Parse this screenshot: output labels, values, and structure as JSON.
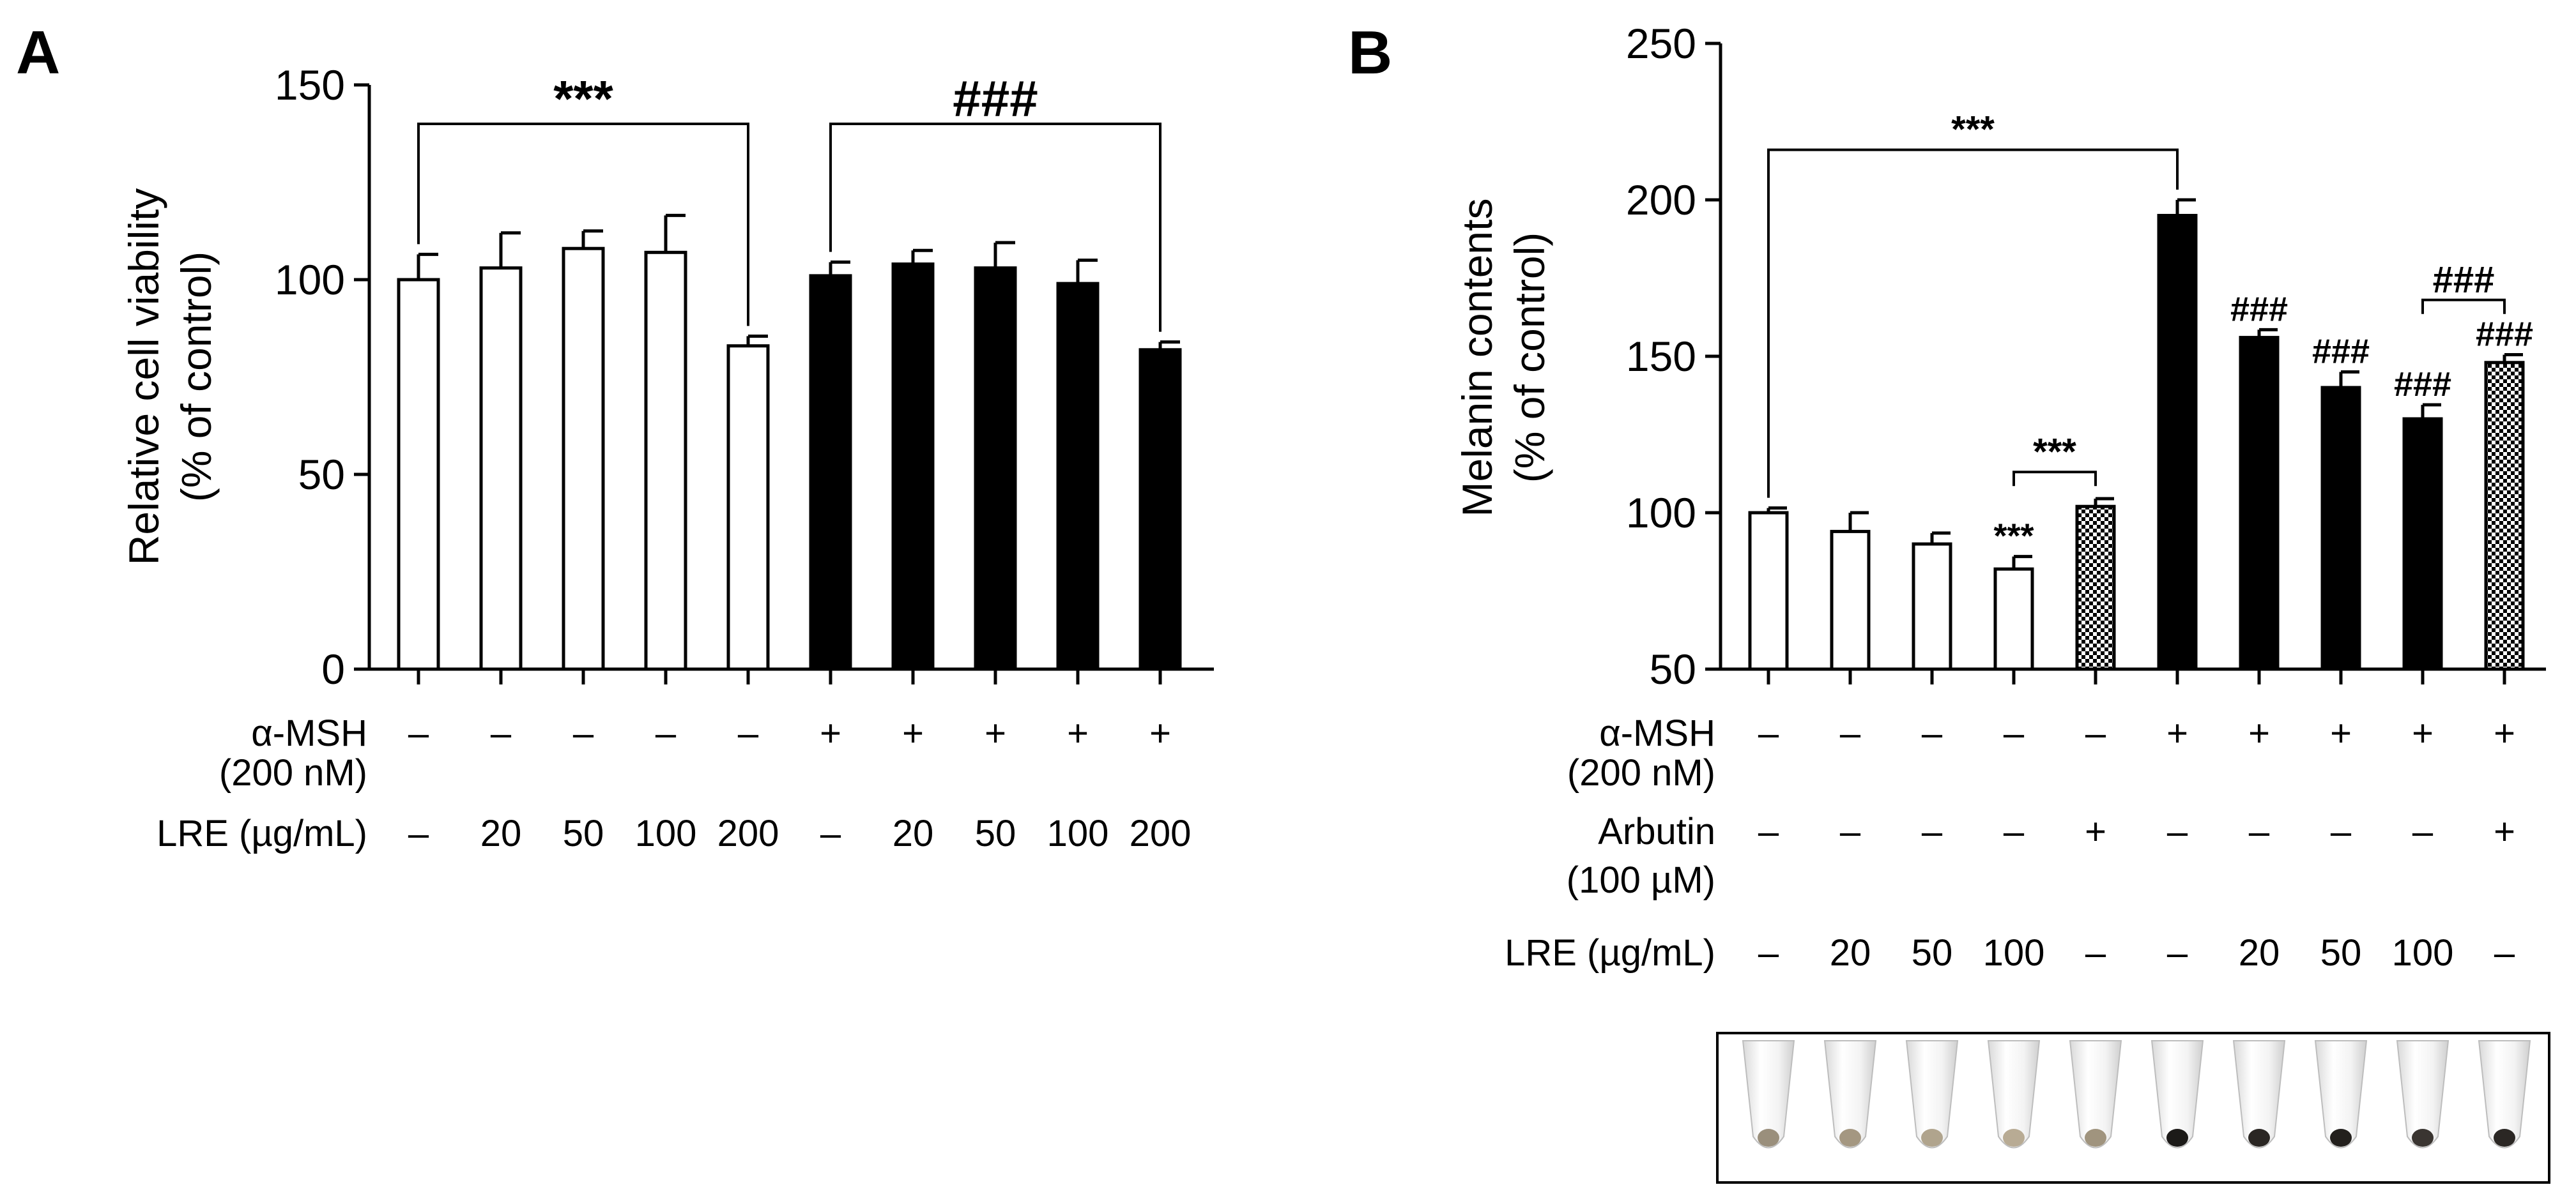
{
  "panels": {
    "a_label": "A",
    "b_label": "B"
  },
  "chart_data": [
    {
      "type": "bar",
      "panel": "A",
      "ylabel_line1": "Relative cell viability",
      "ylabel_line2": "(% of control)",
      "ylim": [
        0,
        150
      ],
      "yticks": [
        0,
        50,
        100,
        150
      ],
      "values": [
        100,
        103,
        108,
        107,
        83,
        101,
        104,
        103,
        99,
        82
      ],
      "errors": [
        6.5,
        9,
        4.5,
        9.5,
        2.5,
        3.5,
        3.5,
        6.5,
        6,
        2
      ],
      "fills": [
        "white",
        "white",
        "white",
        "white",
        "white",
        "black",
        "black",
        "black",
        "black",
        "black"
      ],
      "rows": [
        {
          "label_lines": [
            "α-MSH",
            "(200 nM)"
          ],
          "values": [
            "–",
            "–",
            "–",
            "–",
            "–",
            "+",
            "+",
            "+",
            "+",
            "+"
          ]
        },
        {
          "label_lines": [
            "LRE (µg/mL)"
          ],
          "values": [
            "–",
            "20",
            "50",
            "100",
            "200",
            "–",
            "20",
            "50",
            "100",
            "200"
          ]
        }
      ],
      "brackets": [
        {
          "from": 0,
          "to": 4,
          "level": 140,
          "label": "***"
        },
        {
          "from": 5,
          "to": 9,
          "level": 140,
          "label": "###"
        }
      ]
    },
    {
      "type": "bar",
      "panel": "B",
      "ylabel_line1": "Melanin contents",
      "ylabel_line2": "(% of control)",
      "ylim": [
        50,
        250
      ],
      "yticks": [
        50,
        100,
        150,
        200,
        250
      ],
      "values": [
        100,
        94,
        90,
        82,
        102,
        195,
        156,
        140,
        130,
        148
      ],
      "errors": [
        1.5,
        6,
        3.5,
        4,
        2.5,
        5,
        2.5,
        5,
        4.5,
        2.5
      ],
      "fills": [
        "white",
        "white",
        "white",
        "white",
        "checker",
        "black",
        "black",
        "black",
        "black",
        "checker"
      ],
      "annotations": [
        "",
        "",
        "",
        "***",
        "",
        "",
        "###",
        "###",
        "###",
        "###"
      ],
      "rows": [
        {
          "label_lines": [
            "α-MSH",
            "(200 nM)"
          ],
          "values": [
            "–",
            "–",
            "–",
            "–",
            "–",
            "+",
            "+",
            "+",
            "+",
            "+"
          ]
        },
        {
          "label_lines": [
            "Arbutin",
            "(100 µM)"
          ],
          "values": [
            "–",
            "–",
            "–",
            "–",
            "+",
            "–",
            "–",
            "–",
            "–",
            "+"
          ]
        },
        {
          "label_lines": [
            "LRE (µg/mL)"
          ],
          "values": [
            "–",
            "20",
            "50",
            "100",
            "–",
            "–",
            "20",
            "50",
            "100",
            "–"
          ]
        }
      ],
      "brackets": [
        {
          "from": 0,
          "to": 5,
          "level": 216,
          "label": "***"
        },
        {
          "from": 3,
          "to": 4,
          "level": 113,
          "label": "***"
        },
        {
          "from": 8,
          "to": 9,
          "level": 168,
          "label": "###"
        }
      ],
      "tube_pellets": [
        "#9a8f7c",
        "#a49781",
        "#b0a48d",
        "#b8ab94",
        "#a0947e",
        "#1c1a18",
        "#2a2623",
        "#23201d",
        "#3a3531",
        "#2b2724"
      ]
    }
  ]
}
